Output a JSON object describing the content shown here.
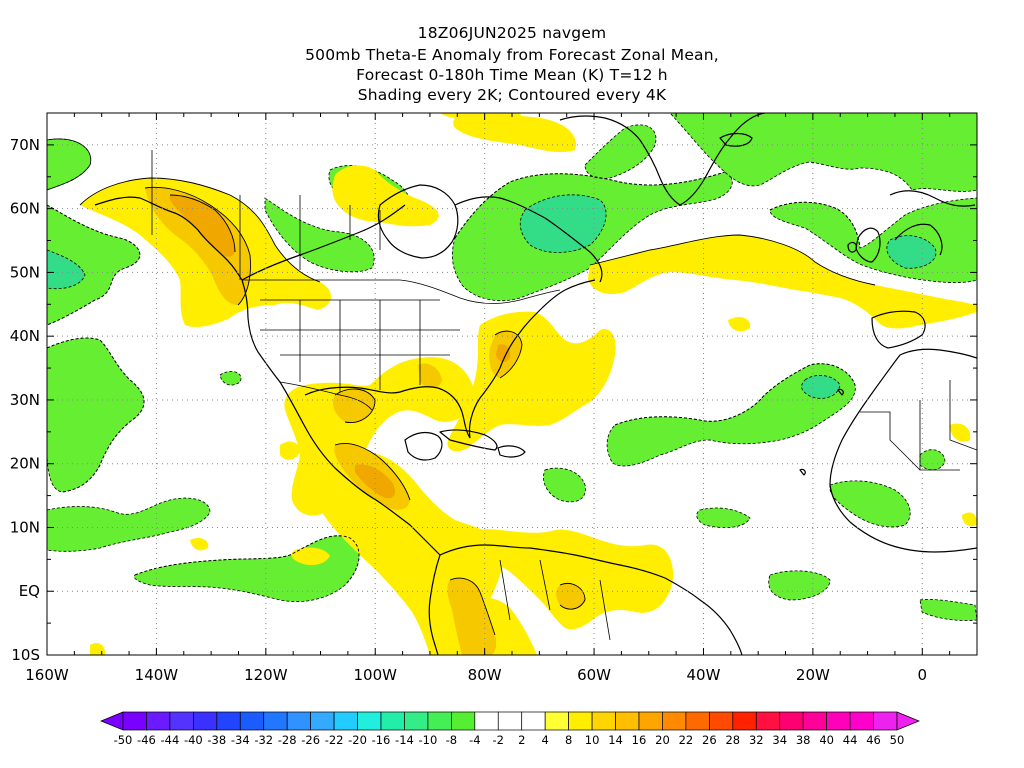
{
  "header": {
    "line1": "18Z06JUN2025 navgem",
    "line2": "500mb Theta-E Anomaly from Forecast Zonal Mean,",
    "line3": "Forecast 0-180h Time Mean (K) T=12 h",
    "line4": "Shading every 2K; Contoured every 4K"
  },
  "axes": {
    "lon_labels": [
      "160W",
      "140W",
      "120W",
      "100W",
      "80W",
      "60W",
      "40W",
      "20W",
      "0"
    ],
    "lat_labels": [
      "70N",
      "60N",
      "50N",
      "40N",
      "30N",
      "20N",
      "10N",
      "EQ",
      "10S"
    ]
  },
  "colors": {
    "green": "#66ee33",
    "teal": "#33dd88",
    "yellow": "#ffee00",
    "gold": "#f5c800",
    "orange": "#f0a800"
  },
  "colorbar": {
    "labels": [
      "-50",
      "-46",
      "-44",
      "-40",
      "-38",
      "-34",
      "-32",
      "-28",
      "-26",
      "-22",
      "-20",
      "-16",
      "-14",
      "-10",
      "-8",
      "-4",
      "-2",
      "2",
      "4",
      "8",
      "10",
      "14",
      "16",
      "20",
      "22",
      "26",
      "28",
      "32",
      "34",
      "38",
      "40",
      "44",
      "46",
      "50"
    ],
    "colors": [
      "#7a00ff",
      "#6a1bff",
      "#5533ff",
      "#3a30ff",
      "#2244ff",
      "#1a5cff",
      "#2277ff",
      "#2f92ff",
      "#33aaff",
      "#22ccff",
      "#22eedd",
      "#22eeaa",
      "#33ee88",
      "#44ee55",
      "#55ee33",
      "#ffffff",
      "#ffffff",
      "#ffffff",
      "#ffff33",
      "#ffee00",
      "#ffd500",
      "#ffbe00",
      "#ffa500",
      "#ff8a00",
      "#ff6a00",
      "#ff4a00",
      "#ff2200",
      "#ff1040",
      "#ff0070",
      "#ff0099",
      "#ff00bb",
      "#ff00cc",
      "#ee22ee"
    ]
  }
}
